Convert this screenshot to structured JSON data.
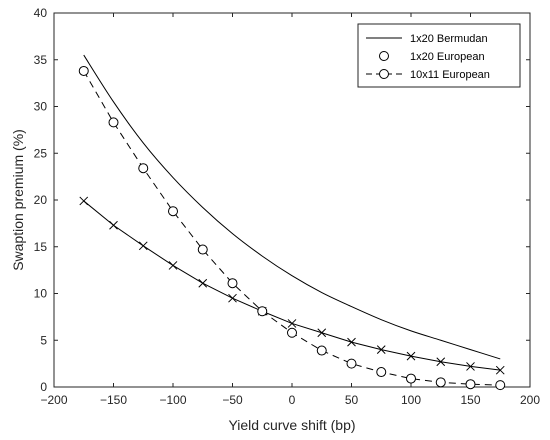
{
  "chart_data": {
    "type": "line",
    "xlabel": "Yield curve shift (bp)",
    "ylabel": "Swaption premium (%)",
    "xlim": [
      -200,
      200
    ],
    "ylim": [
      0,
      40
    ],
    "xticks": [
      -200,
      -150,
      -100,
      -50,
      0,
      50,
      100,
      150,
      200
    ],
    "yticks": [
      0,
      5,
      10,
      15,
      20,
      25,
      30,
      35,
      40
    ],
    "xtick_labels": [
      "−200",
      "−150",
      "−100",
      "−50",
      "0",
      "50",
      "100",
      "150",
      "200"
    ],
    "ytick_labels": [
      "0",
      "5",
      "10",
      "15",
      "20",
      "25",
      "30",
      "35",
      "40"
    ],
    "grid": false,
    "legend_position": "top-right",
    "legend": [
      "1x20 Bermudan",
      "1x20 European",
      "10x11 European"
    ],
    "series": [
      {
        "name": "1x20 Bermudan",
        "style": "solid",
        "marker": "none",
        "x": [
          -175,
          -150,
          -125,
          -100,
          -75,
          -50,
          -25,
          0,
          25,
          50,
          75,
          100,
          125,
          150,
          175
        ],
        "y": [
          35.5,
          30.5,
          26.1,
          22.4,
          19.2,
          16.4,
          14.0,
          11.9,
          10.1,
          8.6,
          7.2,
          6.0,
          5.0,
          4.0,
          3.0
        ]
      },
      {
        "name": "1x20 European",
        "style": "solid",
        "marker": "x",
        "x": [
          -175,
          -150,
          -125,
          -100,
          -75,
          -50,
          -25,
          0,
          25,
          50,
          75,
          100,
          125,
          150,
          175
        ],
        "y": [
          19.9,
          17.3,
          15.1,
          13.0,
          11.1,
          9.5,
          8.1,
          6.8,
          5.8,
          4.8,
          4.0,
          3.3,
          2.7,
          2.2,
          1.8
        ]
      },
      {
        "name": "10x11 European",
        "style": "dashed",
        "marker": "o",
        "x": [
          -175,
          -150,
          -125,
          -100,
          -75,
          -50,
          -25,
          0,
          25,
          50,
          75,
          100,
          125,
          150,
          175
        ],
        "y": [
          33.8,
          28.3,
          23.4,
          18.8,
          14.7,
          11.1,
          8.1,
          5.8,
          3.9,
          2.5,
          1.6,
          0.9,
          0.5,
          0.3,
          0.2
        ]
      }
    ]
  },
  "colors": {
    "line": "#000000",
    "axis": "#262626",
    "background": "#ffffff"
  }
}
